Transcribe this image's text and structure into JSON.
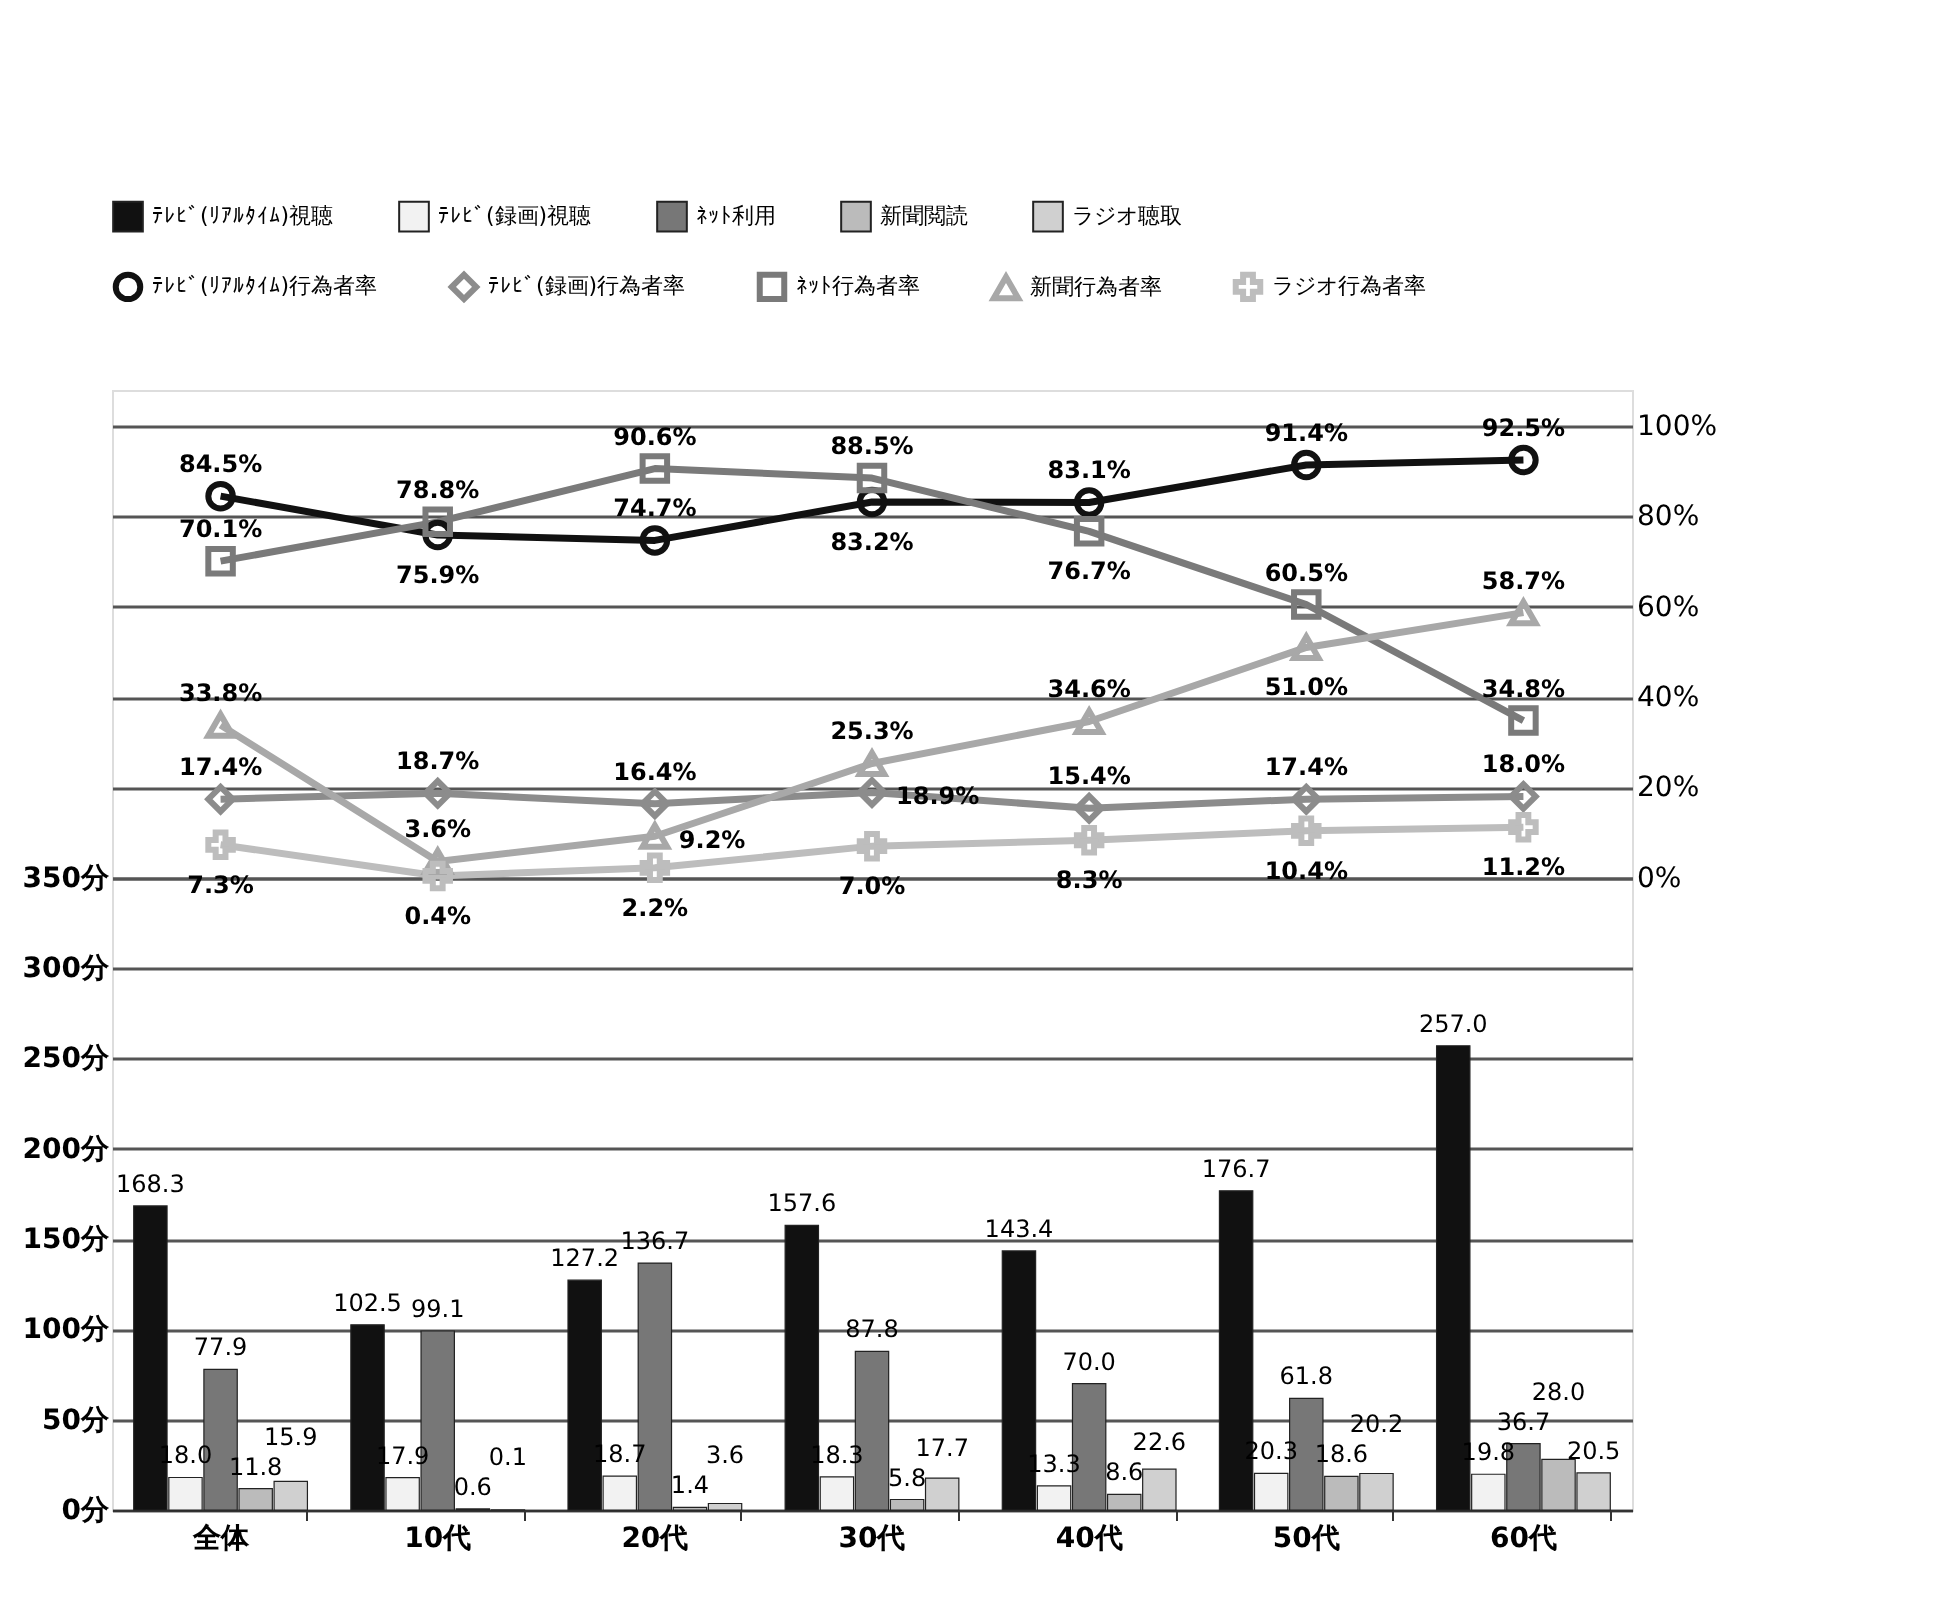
{
  "chart_data": {
    "type": "bar",
    "categories": [
      "全体",
      "10代",
      "20代",
      "30代",
      "40代",
      "50代",
      "60代"
    ],
    "ylim": [
      0,
      620
    ],
    "yticks": [
      {
        "value": 0,
        "label": "0分"
      },
      {
        "value": 50,
        "label": "50分"
      },
      {
        "value": 100,
        "label": "100分"
      },
      {
        "value": 150,
        "label": "150分"
      },
      {
        "value": 200,
        "label": "200分"
      },
      {
        "value": 250,
        "label": "250分"
      },
      {
        "value": 300,
        "label": "300分"
      },
      {
        "value": 350,
        "label": "350分"
      }
    ],
    "y2lim": [
      -140,
      108
    ],
    "y2ticks": [
      {
        "value": 0,
        "label": "0%"
      },
      {
        "value": 20,
        "label": "20%"
      },
      {
        "value": 40,
        "label": "40%"
      },
      {
        "value": 60,
        "label": "60%"
      },
      {
        "value": 80,
        "label": "80%"
      },
      {
        "value": 100,
        "label": "100%"
      }
    ],
    "grid": "y",
    "legend": "top",
    "series": [
      {
        "name": "ﾃﾚﾋﾞ(ﾘｱﾙﾀｲﾑ)視聴",
        "color": "#111111",
        "values": [
          168.3,
          102.5,
          127.2,
          157.6,
          143.4,
          176.7,
          257.0
        ],
        "value_labels": [
          "168.3",
          "102.5",
          "127.2",
          "157.6",
          "143.4",
          "176.7",
          "257.0"
        ]
      },
      {
        "name": "ﾃﾚﾋﾞ(録画)視聴",
        "color": "#f2f2f2",
        "values": [
          18.0,
          17.9,
          18.7,
          18.3,
          13.3,
          20.3,
          19.8
        ],
        "value_labels": [
          "18.0",
          "17.9",
          "18.7",
          "18.3",
          "13.3",
          "20.3",
          "19.8"
        ]
      },
      {
        "name": "ﾈｯﾄ利用",
        "color": "#777777",
        "values": [
          77.9,
          99.1,
          136.7,
          87.8,
          70.0,
          61.8,
          36.7
        ],
        "value_labels": [
          "77.9",
          "99.1",
          "136.7",
          "87.8",
          "70.0",
          "61.8",
          "36.7"
        ]
      },
      {
        "name": "新聞閲読",
        "color": "#bbbbbb",
        "values": [
          11.8,
          0.6,
          1.4,
          5.8,
          8.6,
          18.6,
          28.0
        ],
        "value_labels": [
          "11.8",
          "0.6",
          "1.4",
          "5.8",
          "8.6",
          "18.6",
          "28.0"
        ]
      },
      {
        "name": "ラジオ聴取",
        "color": "#d0d0d0",
        "values": [
          15.9,
          0.1,
          3.6,
          17.7,
          22.6,
          20.2,
          20.5
        ],
        "value_labels": [
          "15.9",
          "0.1",
          "3.6",
          "17.7",
          "22.6",
          "20.2",
          "20.5"
        ]
      },
      {
        "name": "ﾃﾚﾋﾞ(ﾘｱﾙﾀｲﾑ)行為者率",
        "type": "line",
        "axis": "y2",
        "marker": "circle",
        "color": "#111111",
        "values": [
          84.5,
          75.9,
          74.7,
          83.2,
          83.1,
          91.4,
          92.5
        ],
        "value_labels": [
          "84.5%",
          "75.9%",
          "74.7%",
          "83.2%",
          "83.1%",
          "91.4%",
          "92.5%"
        ]
      },
      {
        "name": "ﾃﾚﾋﾞ(録画)行為者率",
        "type": "line",
        "axis": "y2",
        "marker": "diamond",
        "color": "#8c8c8c",
        "values": [
          17.4,
          18.7,
          16.4,
          18.9,
          15.4,
          17.4,
          18.0
        ],
        "value_labels": [
          "17.4%",
          "18.7%",
          "16.4%",
          "18.9%",
          "15.4%",
          "17.4%",
          "18.0%"
        ]
      },
      {
        "name": "ﾈｯﾄ行為者率",
        "type": "line",
        "axis": "y2",
        "marker": "square",
        "color": "#7a7a7a",
        "values": [
          70.1,
          78.8,
          90.6,
          88.5,
          76.7,
          60.5,
          34.8
        ],
        "value_labels": [
          "70.1%",
          "78.8%",
          "90.6%",
          "88.5%",
          "76.7%",
          "60.5%",
          "34.8%"
        ]
      },
      {
        "name": "新聞行為者率",
        "type": "line",
        "axis": "y2",
        "marker": "triangle",
        "color": "#a8a8a8",
        "values": [
          33.8,
          3.6,
          9.2,
          25.3,
          34.6,
          51.0,
          58.7
        ],
        "value_labels": [
          "33.8%",
          "3.6%",
          "9.2%",
          "25.3%",
          "34.6%",
          "51.0%",
          "58.7%"
        ]
      },
      {
        "name": "ラジオ行為者率",
        "type": "line",
        "axis": "y2",
        "marker": "cross",
        "color": "#bdbdbd",
        "values": [
          7.3,
          0.4,
          2.2,
          7.0,
          8.3,
          10.4,
          11.2
        ],
        "value_labels": [
          "7.3%",
          "0.4%",
          "2.2%",
          "7.0%",
          "8.3%",
          "10.4%",
          "11.2%"
        ]
      }
    ]
  }
}
